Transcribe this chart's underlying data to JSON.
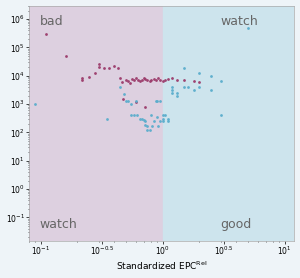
{
  "xlabel": "Standardized EPC$^{Rel}$",
  "xlim": [
    0.08,
    12.0
  ],
  "ylim": [
    0.015,
    3000000
  ],
  "x_threshold": 1.0,
  "y_threshold": 1.0,
  "bad_region_color": "#ddd0e0",
  "good_region_color": "#cde4ed",
  "red_points": [
    [
      0.11,
      300000
    ],
    [
      0.16,
      50000
    ],
    [
      0.22,
      8000
    ],
    [
      0.22,
      7000
    ],
    [
      0.25,
      9000
    ],
    [
      0.28,
      12000
    ],
    [
      0.3,
      25000
    ],
    [
      0.3,
      20000
    ],
    [
      0.33,
      18000
    ],
    [
      0.36,
      18000
    ],
    [
      0.4,
      22000
    ],
    [
      0.43,
      18000
    ],
    [
      0.45,
      8000
    ],
    [
      0.46,
      6000
    ],
    [
      0.47,
      1500
    ],
    [
      0.5,
      7000
    ],
    [
      0.52,
      6500
    ],
    [
      0.54,
      5500
    ],
    [
      0.56,
      7500
    ],
    [
      0.58,
      7000
    ],
    [
      0.6,
      8000
    ],
    [
      0.63,
      7000
    ],
    [
      0.65,
      6500
    ],
    [
      0.68,
      7000
    ],
    [
      0.7,
      8000
    ],
    [
      0.72,
      7500
    ],
    [
      0.75,
      7000
    ],
    [
      0.78,
      6500
    ],
    [
      0.8,
      7000
    ],
    [
      0.85,
      7500
    ],
    [
      0.88,
      7000
    ],
    [
      0.92,
      8000
    ],
    [
      0.95,
      7000
    ],
    [
      1.0,
      6500
    ],
    [
      1.05,
      7000
    ],
    [
      1.1,
      7500
    ],
    [
      1.2,
      8000
    ],
    [
      1.3,
      7000
    ],
    [
      1.5,
      7000
    ],
    [
      1.8,
      6500
    ],
    [
      2.0,
      6000
    ],
    [
      0.6,
      1200
    ],
    [
      0.72,
      800
    ]
  ],
  "blue_points": [
    [
      0.09,
      1000
    ],
    [
      0.35,
      300
    ],
    [
      0.45,
      4000
    ],
    [
      0.48,
      2200
    ],
    [
      0.5,
      1300
    ],
    [
      0.52,
      1300
    ],
    [
      0.55,
      1000
    ],
    [
      0.55,
      400
    ],
    [
      0.58,
      400
    ],
    [
      0.6,
      1300
    ],
    [
      0.62,
      400
    ],
    [
      0.65,
      300
    ],
    [
      0.68,
      300
    ],
    [
      0.7,
      280
    ],
    [
      0.72,
      250
    ],
    [
      0.72,
      180
    ],
    [
      0.75,
      170
    ],
    [
      0.75,
      120
    ],
    [
      0.78,
      120
    ],
    [
      0.8,
      400
    ],
    [
      0.82,
      170
    ],
    [
      0.85,
      250
    ],
    [
      0.88,
      1300
    ],
    [
      0.9,
      1300
    ],
    [
      0.9,
      350
    ],
    [
      0.92,
      170
    ],
    [
      0.95,
      250
    ],
    [
      0.95,
      1300
    ],
    [
      1.0,
      400
    ],
    [
      1.0,
      300
    ],
    [
      1.0,
      250
    ],
    [
      1.05,
      400
    ],
    [
      1.1,
      300
    ],
    [
      1.1,
      250
    ],
    [
      1.2,
      4000
    ],
    [
      1.2,
      3200
    ],
    [
      1.2,
      2500
    ],
    [
      1.3,
      2500
    ],
    [
      1.3,
      2000
    ],
    [
      1.5,
      4000
    ],
    [
      1.6,
      4000
    ],
    [
      1.8,
      3200
    ],
    [
      2.0,
      4000
    ],
    [
      2.5,
      3200
    ],
    [
      3.0,
      400
    ],
    [
      1.5,
      18000
    ],
    [
      2.0,
      12000
    ],
    [
      2.5,
      10000
    ],
    [
      3.0,
      6500
    ],
    [
      5.0,
      500000
    ]
  ],
  "red_color": "#9b3a6a",
  "blue_color": "#5aadcc",
  "marker_size": 4,
  "font_size_quadrant": 9,
  "font_size_axis": 6.5,
  "font_size_ticks": 5.5,
  "bg_color": "#eef4f8",
  "spine_color": "#aaaaaa"
}
